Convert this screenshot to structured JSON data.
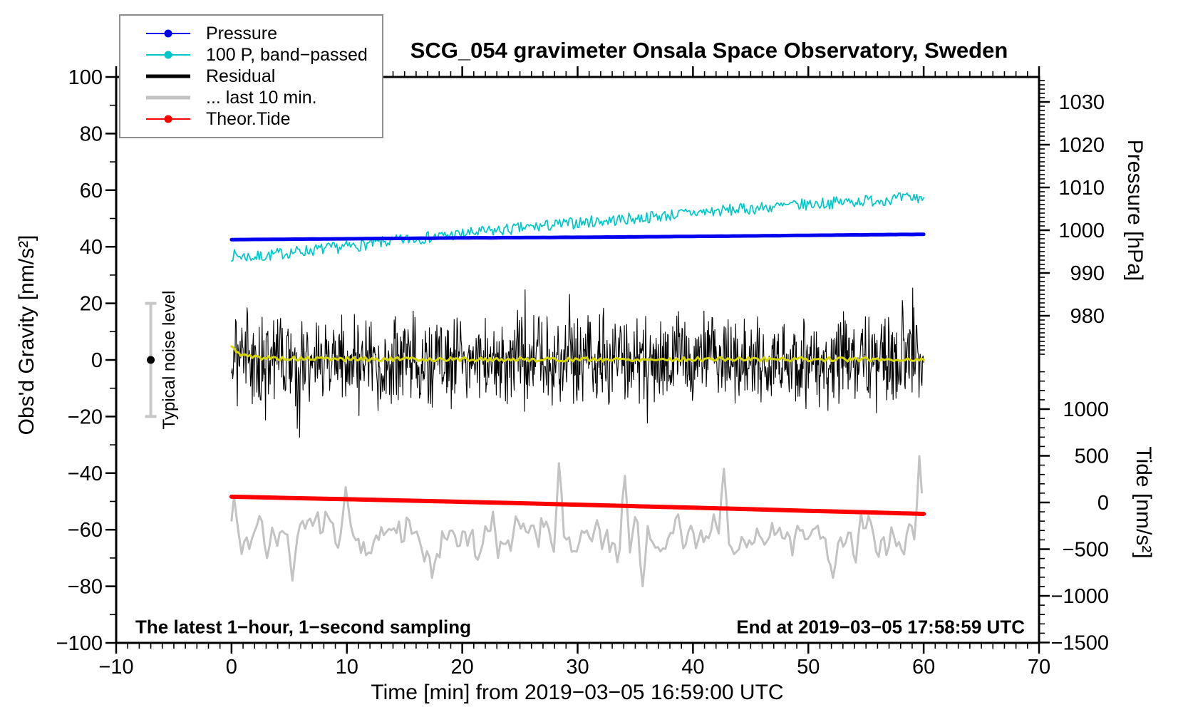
{
  "title": "SCG_054 gravimeter Onsala Space Observatory, Sweden",
  "annotations": {
    "sampling": "The latest 1−hour, 1−second sampling",
    "end": "End at 2019−03−05 17:58:59 UTC"
  },
  "legend": {
    "position": "top-left",
    "items": [
      {
        "label": "Pressure",
        "color": "#0000EE",
        "lw": 2,
        "dot": true
      },
      {
        "label": "100 P, band−passed",
        "color": "#00C8C8",
        "lw": 2,
        "dot": true
      },
      {
        "label": "Residual",
        "color": "#000000",
        "lw": 5,
        "dot": false
      },
      {
        "label": "... last 10 min.",
        "color": "#C3C3C3",
        "lw": 5,
        "dot": false
      },
      {
        "label": "Theor.Tide",
        "color": "#FF0000",
        "lw": 2,
        "dot": true
      }
    ]
  },
  "chart_data": {
    "type": "line",
    "title": "SCG_054 gravimeter Onsala Space Observatory, Sweden",
    "legend_position": "top-left",
    "grid": false,
    "axes": {
      "x": {
        "label": "Time [min] from 2019−03−05 16:59:00 UTC",
        "min": -10,
        "max": 70,
        "ticks": [
          -10,
          0,
          10,
          20,
          30,
          40,
          50,
          60,
          70
        ],
        "minor_step": 1
      },
      "y_left": {
        "label": "Obs'd Gravity [nm/s²]",
        "min": -100,
        "max": 100,
        "ticks": [
          100,
          80,
          60,
          40,
          20,
          0,
          -20,
          -40,
          -60,
          -80,
          -100
        ],
        "minor_step": 10
      },
      "pressure": {
        "label": "Pressure [hPa]",
        "ticks": [
          1030,
          1020,
          1010,
          1000,
          990,
          980
        ],
        "minor_step": 1,
        "minor_from": 1035,
        "minor_to": 970
      },
      "tide": {
        "label": "Tide [nm/s²]",
        "ticks": [
          1000,
          500,
          0,
          -500,
          -1000,
          -1500
        ],
        "minor_step": 100,
        "minor_from": 1400,
        "minor_to": -1500
      }
    },
    "noise_bar": {
      "t": -7,
      "center": 0,
      "half_range": 20,
      "label": "Typical noise level",
      "bar_color": "#C8C8C8",
      "dot_color": "#000000"
    },
    "series": [
      {
        "name": "last_10_min",
        "legend": "... last 10 min.",
        "axis": "gravity",
        "color": "#C3C3C3",
        "width": 3,
        "seed": 9,
        "step": 0.22,
        "noise": 10,
        "smooth": true,
        "spike_prob": 0.02,
        "spike_min": 4,
        "spike_max": 10,
        "anchors_t": [
          0,
          30,
          60
        ],
        "anchors_v": [
          -62.5,
          -63,
          -64
        ],
        "events": [
          {
            "t": 0,
            "v": -48
          },
          {
            "t": 5.2,
            "v": -78
          },
          {
            "t": 9.8,
            "v": -45
          },
          {
            "t": 17.4,
            "v": -77
          },
          {
            "t": 28.3,
            "v": -36.5
          },
          {
            "t": 34.2,
            "v": -41
          },
          {
            "t": 35.6,
            "v": -80
          },
          {
            "t": 42.6,
            "v": -38.5
          },
          {
            "t": 52.2,
            "v": -77
          },
          {
            "t": 59.7,
            "v": -34
          }
        ]
      },
      {
        "name": "theor_tide",
        "legend": "Theor.Tide",
        "axis": "tide",
        "color": "#FF0000",
        "width": 6,
        "points_t": [
          0,
          5,
          10,
          15,
          20,
          25,
          30,
          35,
          40,
          45,
          50,
          55,
          60
        ],
        "points_v": [
          62,
          48,
          35,
          21,
          7,
          -8,
          -24,
          -40,
          -56,
          -72,
          -89,
          -105,
          -122
        ]
      },
      {
        "name": "band_passed",
        "legend": "100 P, band−passed",
        "axis": "gravity",
        "color": "#00C8C8",
        "width": 1.7,
        "seed": 7,
        "step": 0.12,
        "noise": 2.1,
        "anchors_t": [
          0,
          2,
          5,
          10,
          15,
          20,
          25,
          30,
          35,
          40,
          45,
          50,
          55,
          60
        ],
        "anchors_v": [
          37,
          36.3,
          38,
          40,
          42.5,
          44.5,
          46.5,
          48.5,
          50,
          52,
          53.5,
          55,
          56.3,
          57.5
        ]
      },
      {
        "name": "pressure",
        "legend": "Pressure",
        "axis": "pressure",
        "color": "#0000EE",
        "width": 5,
        "seed": 11,
        "step": 0.5,
        "noise": 0.02,
        "anchors_t": [
          0,
          10,
          20,
          30,
          40,
          50,
          60
        ],
        "anchors_v": [
          997.8,
          998.0,
          998.2,
          998.35,
          998.55,
          998.8,
          999.05
        ]
      },
      {
        "name": "residual",
        "legend": "Residual",
        "axis": "gravity",
        "color": "#000000",
        "width": 1.1,
        "seed": 3,
        "step": 0.05,
        "noise": 19,
        "tri": true,
        "spike_prob": 0.06,
        "spike_min": 5,
        "spike_max": 12,
        "anchors_t": [
          0,
          60
        ],
        "anchors_v": [
          0,
          0
        ]
      },
      {
        "name": "residual_smoothed",
        "legend": "",
        "axis": "gravity",
        "color": "#D6D600",
        "width": 3,
        "seed": 5,
        "step": 0.2,
        "noise": 0.75,
        "anchors_t": [
          0,
          0.7,
          1.5,
          3,
          6,
          15,
          30,
          45,
          60
        ],
        "anchors_v": [
          4.5,
          2.2,
          1.2,
          0.7,
          0.4,
          0.25,
          0.15,
          0.3,
          0.1
        ]
      }
    ]
  }
}
